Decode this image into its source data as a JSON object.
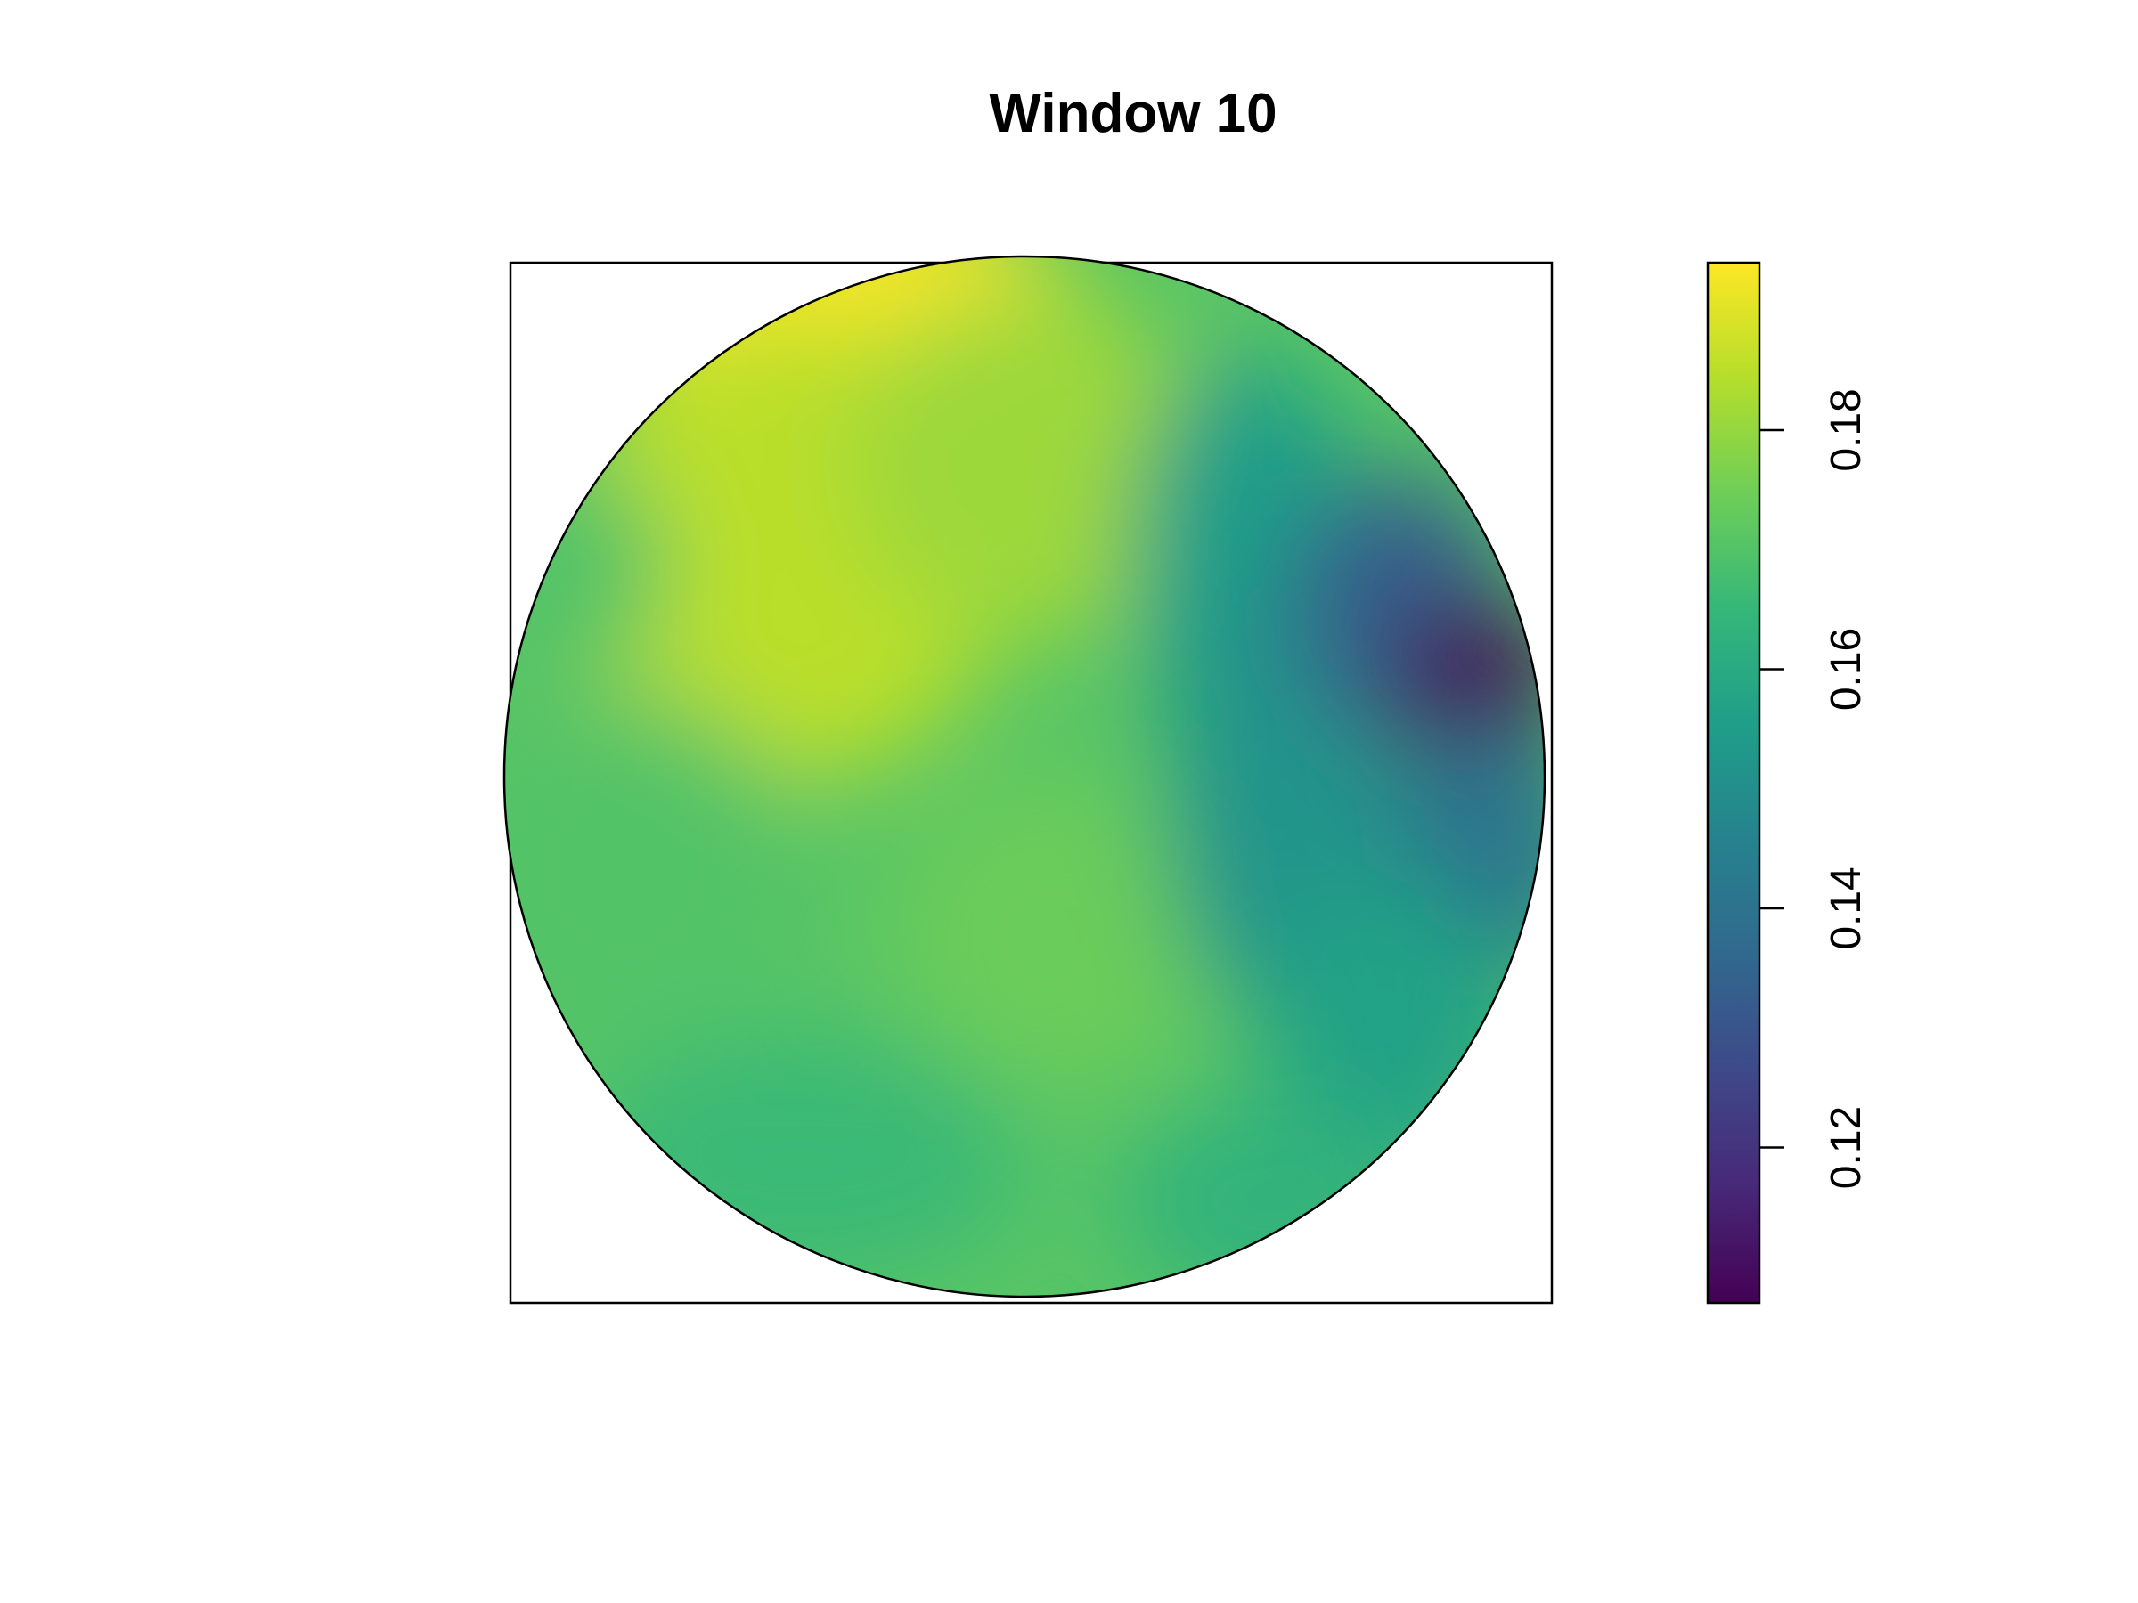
{
  "chart_data": {
    "type": "heatmap",
    "title": "Window 10",
    "xlabel": "",
    "ylabel": "",
    "region": "circle",
    "colormap": "viridis",
    "color_range": [
      0.107,
      0.194
    ],
    "colorbar": {
      "ticks": [
        0.12,
        0.14,
        0.16,
        0.18
      ],
      "tick_labels": [
        "0.12",
        "0.14",
        "0.16",
        "0.18"
      ],
      "orientation": "vertical",
      "placement": "right"
    },
    "features": [
      {
        "description_value": 0.194,
        "location": "upper-left"
      },
      {
        "description_value": 0.107,
        "location": "right"
      },
      {
        "description_value": 0.155,
        "location": "lower-right"
      },
      {
        "description_value": 0.172,
        "location": "center"
      }
    ],
    "colors": {
      "viridis_stops": [
        "#440154",
        "#482878",
        "#3e4989",
        "#31688e",
        "#26828e",
        "#1f9e89",
        "#35b779",
        "#6ece58",
        "#b5de2b",
        "#fde725"
      ]
    }
  }
}
